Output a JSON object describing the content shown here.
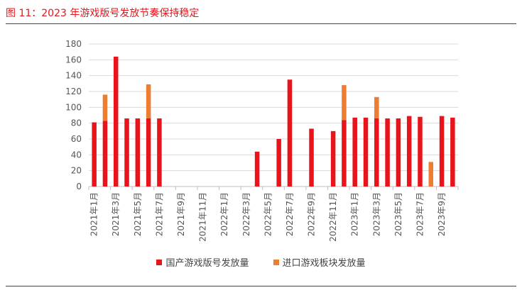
{
  "figure": {
    "title": "图 11：2023 年游戏版号发放节奏保持稳定"
  },
  "chart_data": {
    "type": "bar",
    "stacked": true,
    "ylim": [
      0,
      180
    ],
    "yticks": [
      0,
      20,
      40,
      60,
      80,
      100,
      120,
      140,
      160,
      180
    ],
    "categories": [
      "2021年1月",
      "2021年2月",
      "2021年3月",
      "2021年4月",
      "2021年5月",
      "2021年6月",
      "2021年7月",
      "2021年8月",
      "2021年9月",
      "2021年10月",
      "2021年11月",
      "2021年12月",
      "2022年1月",
      "2022年2月",
      "2022年3月",
      "2022年4月",
      "2022年5月",
      "2022年6月",
      "2022年7月",
      "2022年8月",
      "2022年9月",
      "2022年10月",
      "2022年11月",
      "2022年12月",
      "2023年1月",
      "2023年2月",
      "2023年3月",
      "2023年4月",
      "2023年5月",
      "2023年6月",
      "2023年7月",
      "2023年8月",
      "2023年9月",
      "2023年10月"
    ],
    "tick_labels": [
      "2021年1月",
      "",
      "2021年3月",
      "",
      "2021年5月",
      "",
      "2021年7月",
      "",
      "2021年9月",
      "",
      "2021年11月",
      "",
      "2022年1月",
      "",
      "2022年3月",
      "",
      "2022年5月",
      "",
      "2022年7月",
      "",
      "2022年9月",
      "",
      "2022年11月",
      "",
      "2023年1月",
      "",
      "2023年3月",
      "",
      "2023年5月",
      "",
      "2023年7月",
      "",
      "2023年9月",
      ""
    ],
    "series": [
      {
        "name": "国产游戏版号发放量",
        "color": "#e8141b",
        "values": [
          81,
          83,
          164,
          86,
          86,
          86,
          86,
          0,
          0,
          0,
          0,
          0,
          0,
          0,
          0,
          44,
          0,
          60,
          135,
          0,
          73,
          0,
          70,
          84,
          87,
          87,
          86,
          86,
          86,
          89,
          88,
          0,
          89,
          87
        ]
      },
      {
        "name": "进口游戏板块发放量",
        "color": "#ed7d31",
        "values": [
          0,
          33,
          0,
          0,
          0,
          43,
          0,
          0,
          0,
          0,
          0,
          0,
          0,
          0,
          0,
          0,
          0,
          0,
          0,
          0,
          0,
          0,
          0,
          44,
          0,
          0,
          27,
          0,
          0,
          0,
          0,
          31,
          0,
          0
        ]
      }
    ],
    "grid": true,
    "legend_position": "bottom"
  }
}
